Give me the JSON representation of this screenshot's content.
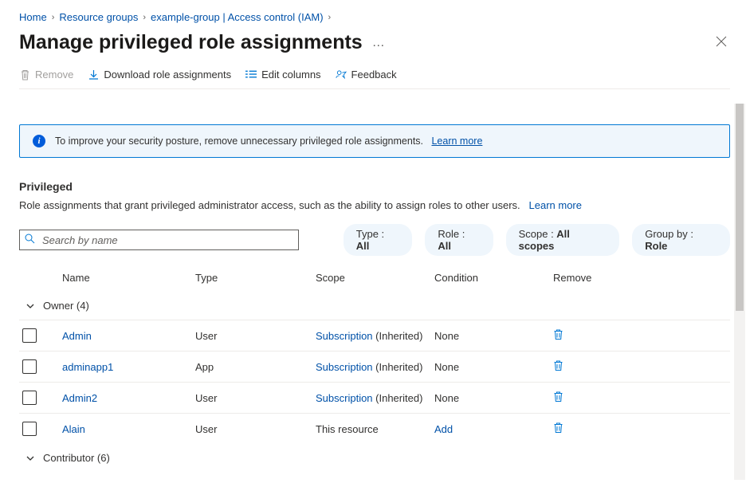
{
  "breadcrumb": {
    "items": [
      {
        "label": "Home"
      },
      {
        "label": "Resource groups"
      },
      {
        "label": "example-group | Access control (IAM)"
      }
    ],
    "separator": "›"
  },
  "header": {
    "title": "Manage privileged role assignments",
    "more": "…"
  },
  "toolbar": {
    "remove": "Remove",
    "download": "Download role assignments",
    "edit_columns": "Edit columns",
    "feedback": "Feedback"
  },
  "info_bar": {
    "text": "To improve your security posture, remove unnecessary privileged role assignments.",
    "link": "Learn more"
  },
  "section": {
    "title": "Privileged",
    "description": "Role assignments that grant privileged administrator access, such as the ability to assign roles to other users.",
    "learn_more": "Learn more"
  },
  "search": {
    "placeholder": "Search by name"
  },
  "filters": {
    "type": {
      "label": "Type : ",
      "value": "All"
    },
    "role": {
      "label": "Role : ",
      "value": "All"
    },
    "scope": {
      "label": "Scope : ",
      "value": "All scopes"
    },
    "group_by": {
      "label": "Group by : ",
      "value": "Role"
    }
  },
  "table": {
    "columns": {
      "name": "Name",
      "type": "Type",
      "scope": "Scope",
      "condition": "Condition",
      "remove": "Remove"
    },
    "groups": [
      {
        "header": "Owner (4)",
        "rows": [
          {
            "name": "Admin",
            "type": "User",
            "scope_link": "Subscription",
            "scope_suffix": " (Inherited)",
            "condition": "None",
            "condition_link": false
          },
          {
            "name": "adminapp1",
            "type": "App",
            "scope_link": "Subscription",
            "scope_suffix": " (Inherited)",
            "condition": "None",
            "condition_link": false
          },
          {
            "name": "Admin2",
            "type": "User",
            "scope_link": "Subscription",
            "scope_suffix": " (Inherited)",
            "condition": "None",
            "condition_link": false
          },
          {
            "name": "Alain",
            "type": "User",
            "scope_link": "",
            "scope_suffix": "This resource",
            "condition": "Add",
            "condition_link": true
          }
        ]
      },
      {
        "header": "Contributor (6)",
        "rows": []
      }
    ]
  }
}
